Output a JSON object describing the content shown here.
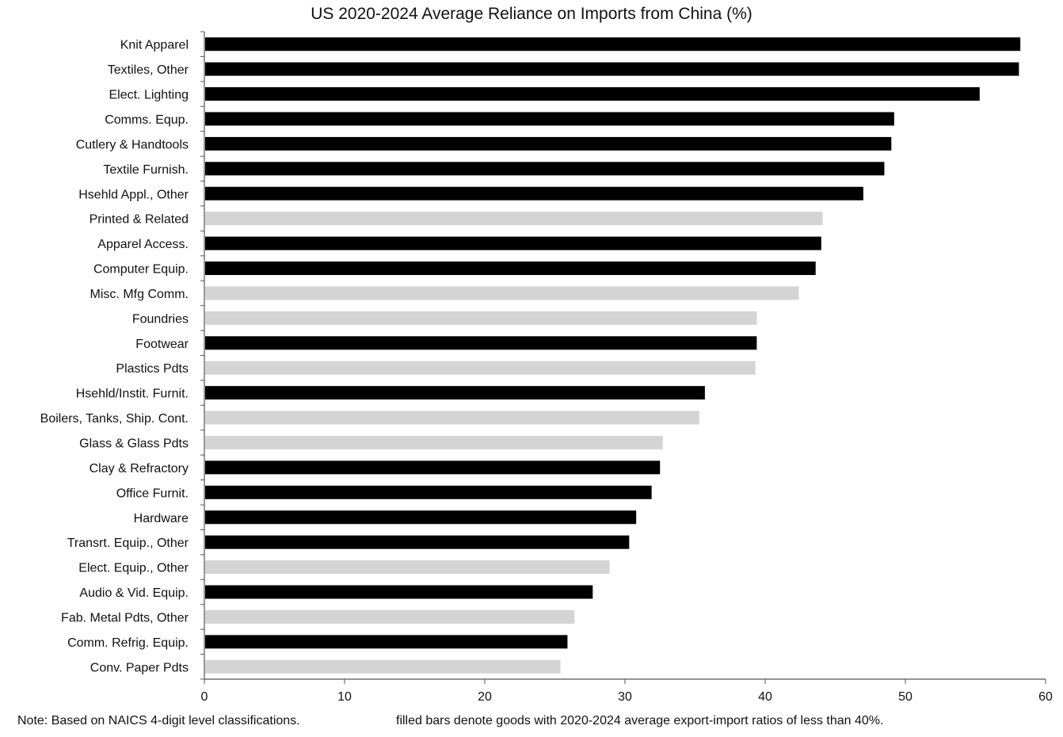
{
  "chart_data": {
    "type": "bar",
    "orientation": "horizontal",
    "title": "US 2020-2024 Average Reliance on Imports from China (%)",
    "xlabel": "",
    "ylabel": "",
    "xlim": [
      0,
      60
    ],
    "x_ticks": [
      0,
      10,
      20,
      30,
      40,
      50,
      60
    ],
    "grid": false,
    "legend": "none",
    "colors": {
      "filled": "#000000",
      "unfilled": "#d4d4d4"
    },
    "bars": [
      {
        "label": "Knit Apparel",
        "value": 58.2,
        "filled": true
      },
      {
        "label": "Textiles, Other",
        "value": 58.1,
        "filled": true
      },
      {
        "label": "Elect. Lighting",
        "value": 55.3,
        "filled": true
      },
      {
        "label": "Comms. Equp.",
        "value": 49.2,
        "filled": true
      },
      {
        "label": "Cutlery & Handtools",
        "value": 49.0,
        "filled": true
      },
      {
        "label": "Textile Furnish.",
        "value": 48.5,
        "filled": true
      },
      {
        "label": "Hsehld Appl., Other",
        "value": 47.0,
        "filled": true
      },
      {
        "label": "Printed & Related",
        "value": 44.1,
        "filled": false
      },
      {
        "label": "Apparel Access.",
        "value": 44.0,
        "filled": true
      },
      {
        "label": "Computer Equip.",
        "value": 43.6,
        "filled": true
      },
      {
        "label": "Misc. Mfg Comm.",
        "value": 42.4,
        "filled": false
      },
      {
        "label": "Foundries",
        "value": 39.4,
        "filled": false
      },
      {
        "label": "Footwear",
        "value": 39.4,
        "filled": true
      },
      {
        "label": "Plastics Pdts",
        "value": 39.3,
        "filled": false
      },
      {
        "label": "Hsehld/Instit. Furnit.",
        "value": 35.7,
        "filled": true
      },
      {
        "label": "Boilers, Tanks, Ship. Cont.",
        "value": 35.3,
        "filled": false
      },
      {
        "label": "Glass & Glass Pdts",
        "value": 32.7,
        "filled": false
      },
      {
        "label": "Clay & Refractory",
        "value": 32.5,
        "filled": true
      },
      {
        "label": "Office Furnit.",
        "value": 31.9,
        "filled": true
      },
      {
        "label": "Hardware",
        "value": 30.8,
        "filled": true
      },
      {
        "label": "Transrt. Equip., Other",
        "value": 30.3,
        "filled": true
      },
      {
        "label": "Elect. Equip., Other",
        "value": 28.9,
        "filled": false
      },
      {
        "label": "Audio & Vid. Equip.",
        "value": 27.7,
        "filled": true
      },
      {
        "label": "Fab. Metal Pdts, Other",
        "value": 26.4,
        "filled": false
      },
      {
        "label": "Comm. Refrig. Equip.",
        "value": 25.9,
        "filled": true
      },
      {
        "label": "Conv. Paper Pdts",
        "value": 25.4,
        "filled": false
      }
    ]
  },
  "notes": {
    "left": "Note: Based on NAICS 4-digit level classifications.",
    "right": "filled bars denote goods with 2020-2024 average export-import ratios of less than 40%."
  }
}
